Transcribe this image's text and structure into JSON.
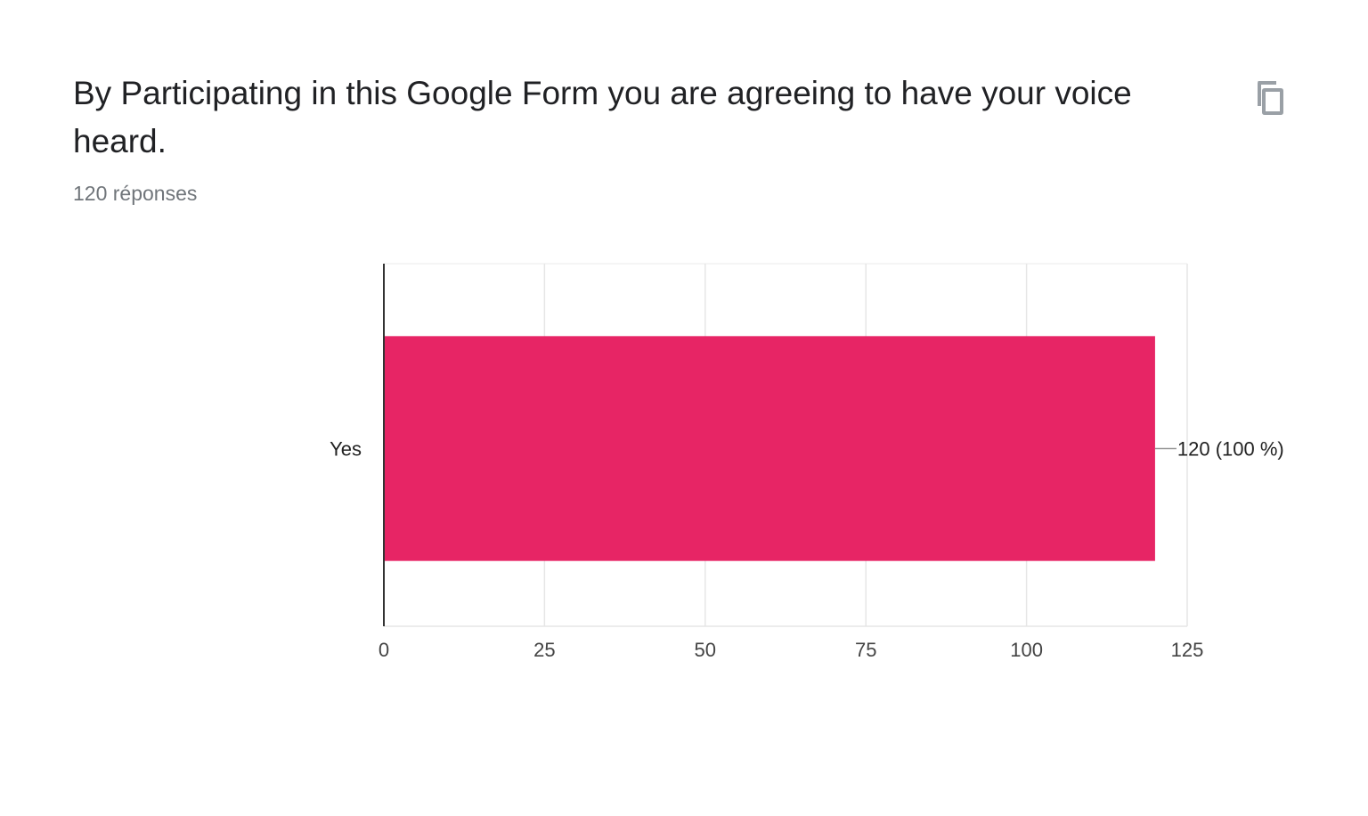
{
  "question": {
    "title": "By Participating in this Google Form you are agreeing to have your voice heard.",
    "response_count": "120 réponses"
  },
  "toolbar": {
    "copy_icon": "copy-icon"
  },
  "chart_data": {
    "type": "bar",
    "orientation": "horizontal",
    "categories": [
      "Yes"
    ],
    "values": [
      120
    ],
    "data_labels": [
      "120 (100 %)"
    ],
    "xlim": [
      0,
      125
    ],
    "xticks": [
      0,
      25,
      50,
      75,
      100,
      125
    ],
    "xtick_labels": [
      "0",
      "25",
      "50",
      "75",
      "100",
      "125"
    ],
    "grid": true,
    "bar_color": "#e72565"
  }
}
